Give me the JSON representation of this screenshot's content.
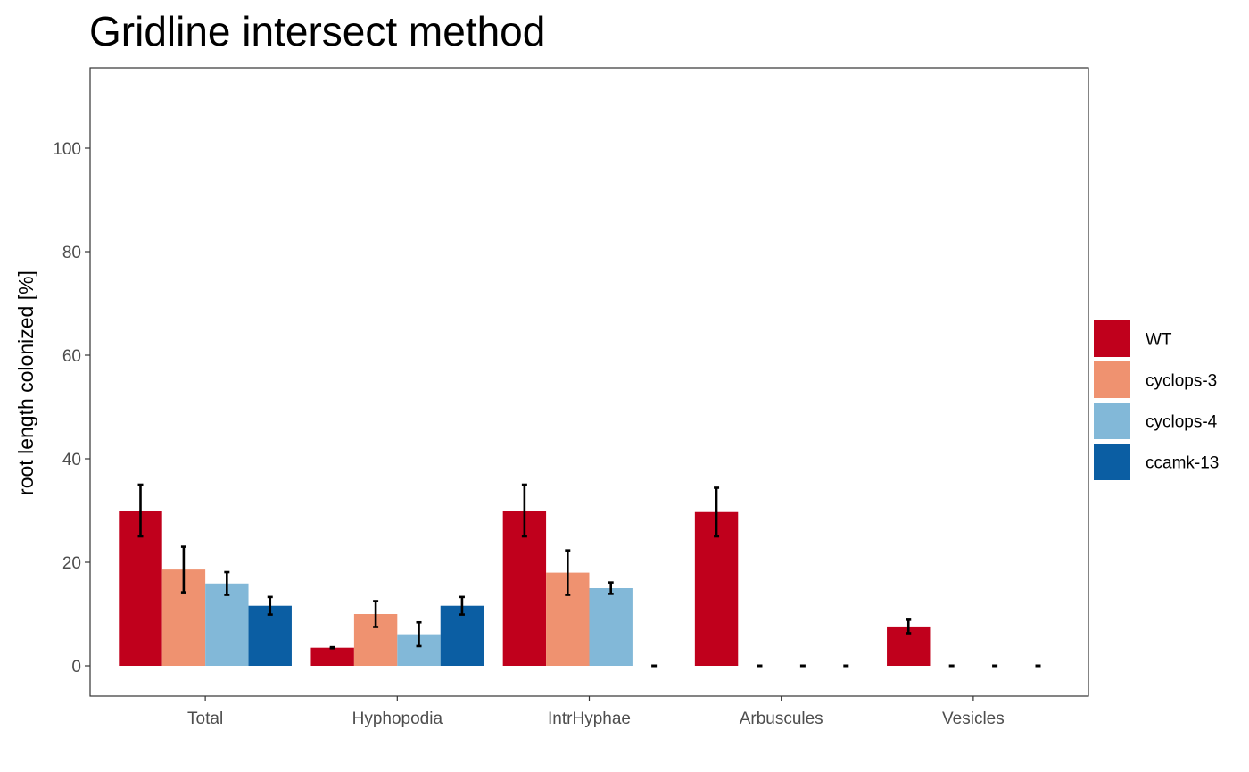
{
  "chart_data": {
    "type": "bar",
    "title": "Gridline intersect method",
    "xlabel": "",
    "ylabel": "root length colonized [%]",
    "ylim": [
      -6,
      115
    ],
    "yticks": [
      0,
      20,
      40,
      60,
      80,
      100
    ],
    "categories": [
      "Total",
      "Hyphopodia",
      "IntrHyphae",
      "Arbuscules",
      "Vesicles"
    ],
    "series": [
      {
        "name": "WT",
        "color": "#c0001c",
        "values": [
          30.0,
          3.5,
          30.0,
          29.7,
          7.6
        ],
        "errors": [
          5.0,
          0.1,
          5.0,
          4.7,
          1.3
        ]
      },
      {
        "name": "cyclops-3",
        "color": "#ef9270",
        "values": [
          18.6,
          10.0,
          18.0,
          0,
          0
        ],
        "errors": [
          4.4,
          2.5,
          4.3,
          0,
          0
        ]
      },
      {
        "name": "cyclops-4",
        "color": "#82b8d8",
        "values": [
          15.9,
          6.1,
          15.0,
          0,
          0
        ],
        "errors": [
          2.2,
          2.3,
          1.1,
          0,
          0
        ]
      },
      {
        "name": "ccamk-13",
        "color": "#0b5ea3",
        "values": [
          11.6,
          11.6,
          0,
          0,
          0
        ],
        "errors": [
          1.7,
          1.7,
          0,
          0,
          0
        ]
      }
    ],
    "grid": false,
    "legend_position": "right"
  }
}
